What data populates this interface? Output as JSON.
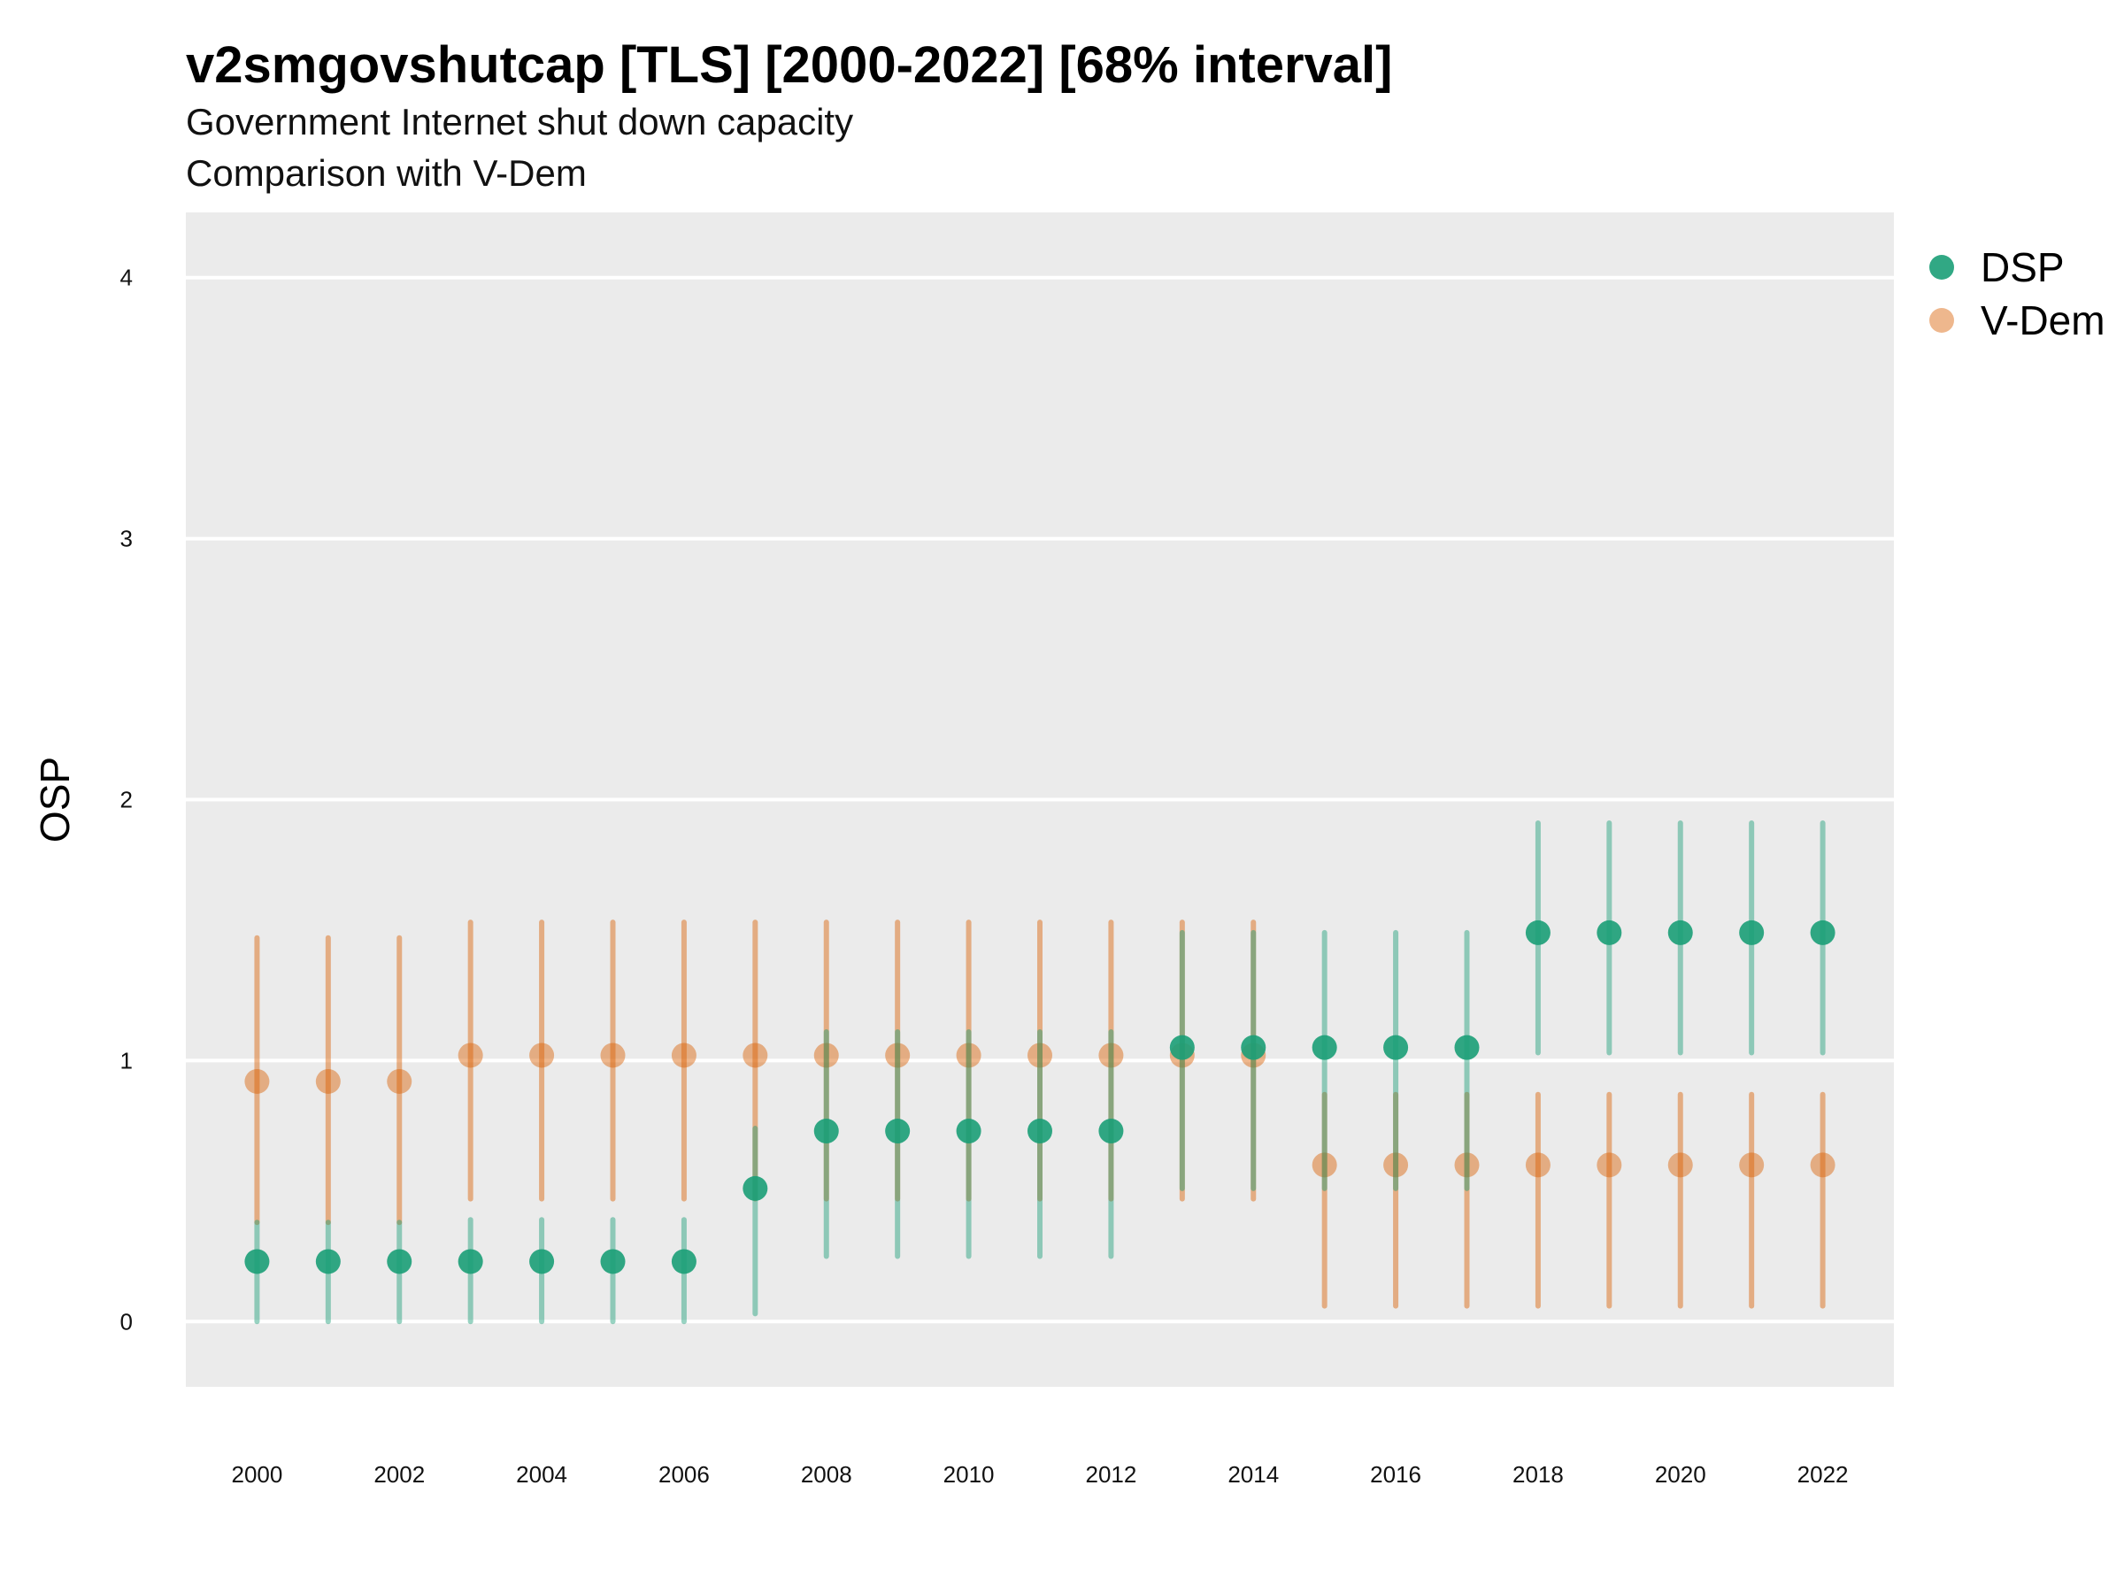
{
  "title": "v2smgovshutcap [TLS] [2000-2022] [68% interval]",
  "subtitle_1": "Government Internet shut down capacity",
  "subtitle_2": "Comparison with V-Dem",
  "chart_data": {
    "type": "scatter",
    "title": "v2smgovshutcap [TLS] [2000-2022] [68% interval]",
    "subtitle": [
      "Government Internet shut down capacity",
      "Comparison with V-Dem"
    ],
    "xlabel": "",
    "ylabel": "OSP",
    "ylim": [
      -0.25,
      4.25
    ],
    "xlim": [
      1999,
      2023
    ],
    "x_ticks": [
      2000,
      2002,
      2004,
      2006,
      2008,
      2010,
      2012,
      2014,
      2016,
      2018,
      2020,
      2022
    ],
    "y_ticks": [
      0,
      1,
      2,
      3,
      4
    ],
    "grid": true,
    "legend_position": "right",
    "x": [
      2000,
      2001,
      2002,
      2003,
      2004,
      2005,
      2006,
      2007,
      2008,
      2009,
      2010,
      2011,
      2012,
      2013,
      2014,
      2015,
      2016,
      2017,
      2018,
      2019,
      2020,
      2021,
      2022
    ],
    "series": [
      {
        "name": "DSP",
        "color": "#1b9e77",
        "values": [
          0.23,
          0.23,
          0.23,
          0.23,
          0.23,
          0.23,
          0.23,
          0.51,
          0.73,
          0.73,
          0.73,
          0.73,
          0.73,
          1.05,
          1.05,
          1.05,
          1.05,
          1.05,
          1.49,
          1.49,
          1.49,
          1.49,
          1.49
        ],
        "lower": [
          0.0,
          0.0,
          0.0,
          0.0,
          0.0,
          0.0,
          0.0,
          0.03,
          0.25,
          0.25,
          0.25,
          0.25,
          0.25,
          0.51,
          0.51,
          0.51,
          0.51,
          0.51,
          1.03,
          1.03,
          1.03,
          1.03,
          1.03
        ],
        "upper": [
          0.38,
          0.38,
          0.38,
          0.39,
          0.39,
          0.39,
          0.39,
          0.74,
          1.11,
          1.11,
          1.11,
          1.11,
          1.11,
          1.49,
          1.49,
          1.49,
          1.49,
          1.49,
          1.91,
          1.91,
          1.91,
          1.91,
          1.91
        ]
      },
      {
        "name": "V-Dem",
        "color": "#d95f02",
        "values": [
          0.92,
          0.92,
          0.92,
          1.02,
          1.02,
          1.02,
          1.02,
          1.02,
          1.02,
          1.02,
          1.02,
          1.02,
          1.02,
          1.02,
          1.02,
          0.6,
          0.6,
          0.6,
          0.6,
          0.6,
          0.6,
          0.6,
          0.6
        ],
        "lower": [
          0.38,
          0.38,
          0.38,
          0.47,
          0.47,
          0.47,
          0.47,
          0.47,
          0.47,
          0.47,
          0.47,
          0.47,
          0.47,
          0.47,
          0.47,
          0.06,
          0.06,
          0.06,
          0.06,
          0.06,
          0.06,
          0.06,
          0.06
        ],
        "upper": [
          1.47,
          1.47,
          1.47,
          1.53,
          1.53,
          1.53,
          1.53,
          1.53,
          1.53,
          1.53,
          1.53,
          1.53,
          1.53,
          1.53,
          1.53,
          0.87,
          0.87,
          0.87,
          0.87,
          0.87,
          0.87,
          0.87,
          0.87
        ]
      }
    ]
  }
}
